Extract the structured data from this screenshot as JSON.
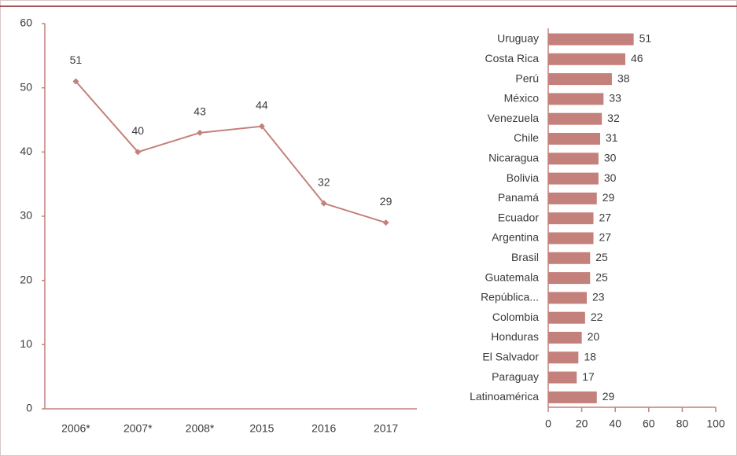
{
  "chart_data": [
    {
      "type": "line",
      "color": "#c4807b",
      "categories": [
        "2006*",
        "2007*",
        "2008*",
        "2015",
        "2016",
        "2017"
      ],
      "values": [
        51,
        40,
        43,
        44,
        32,
        29
      ],
      "ylim": [
        0,
        60
      ],
      "yticks": [
        0,
        10,
        20,
        30,
        40,
        50,
        60
      ]
    },
    {
      "type": "bar",
      "orientation": "horizontal",
      "color": "#c4807b",
      "categories": [
        "Uruguay",
        "Costa Rica",
        "Perú",
        "México",
        "Venezuela",
        "Chile",
        "Nicaragua",
        "Bolivia",
        "Panamá",
        "Ecuador",
        "Argentina",
        "Brasil",
        "Guatemala",
        "República...",
        "Colombia",
        "Honduras",
        "El Salvador",
        "Paraguay",
        "Latinoamérica"
      ],
      "values": [
        51,
        46,
        38,
        33,
        32,
        31,
        30,
        30,
        29,
        27,
        27,
        25,
        25,
        23,
        22,
        20,
        18,
        17,
        29
      ],
      "xlim": [
        0,
        100
      ],
      "xticks": [
        0,
        20,
        40,
        60,
        80,
        100
      ]
    }
  ]
}
